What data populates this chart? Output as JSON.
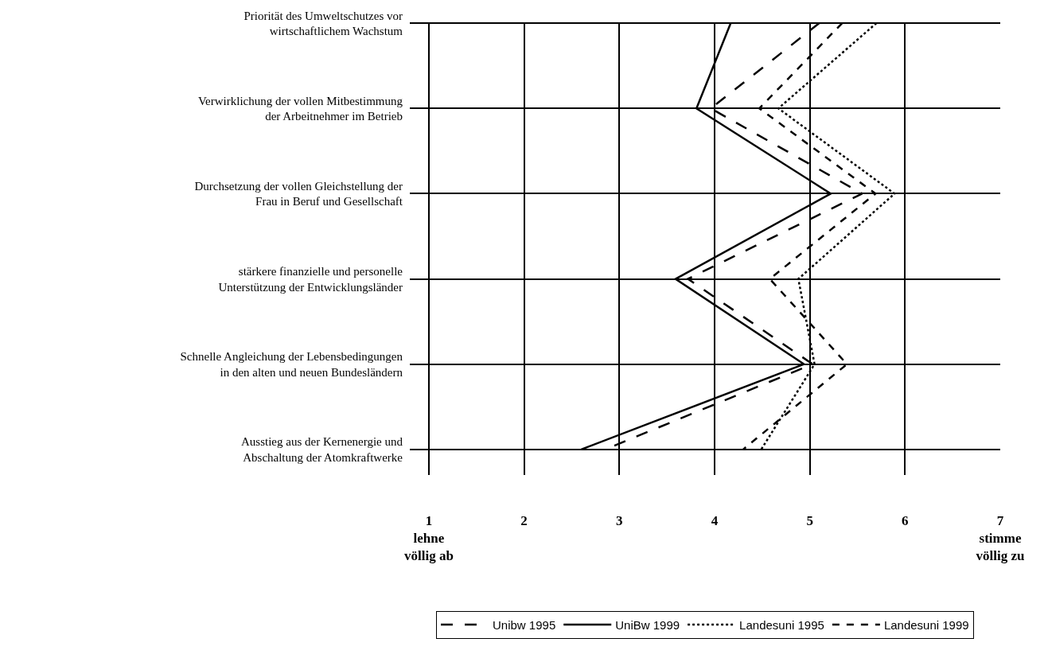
{
  "chart_data": {
    "type": "line",
    "orientation": "horizontal",
    "categories": [
      "Priorität des Umweltschutzes vor wirtschaftlichem Wachstum",
      "Verwirklichung der vollen Mitbestimmung der Arbeitnehmer im Betrieb",
      "Durchsetzung der vollen Gleichstellung der Frau in Beruf und Gesellschaft",
      "stärkere finanzielle und personelle Unterstützung der Entwicklungsländer",
      "Schnelle Angleichung der Lebensbedingungen in den alten und neuen Bundesländern",
      "Ausstieg aus der Kernenergie und Abschaltung der Atomkraftwerke"
    ],
    "series": [
      {
        "name": "Unibw 1995",
        "color": "#000000",
        "line_style": "dashed",
        "values": [
          5.1,
          3.96,
          5.55,
          3.72,
          5.03,
          2.85
        ]
      },
      {
        "name": "UniBw 1999",
        "color": "#000000",
        "line_style": "solid",
        "values": [
          4.17,
          3.81,
          5.22,
          3.59,
          4.94,
          2.6
        ]
      },
      {
        "name": "Landesuni 1995",
        "color": "#000000",
        "line_style": "dotted",
        "values": [
          5.7,
          4.67,
          5.89,
          4.88,
          5.05,
          4.49
        ]
      },
      {
        "name": "Landesuni 1999",
        "color": "#000000",
        "line_style": "dashed",
        "values": [
          5.34,
          4.47,
          5.69,
          4.58,
          5.39,
          4.3
        ]
      }
    ],
    "xlim": [
      0.8,
      7
    ],
    "xticks": [
      {
        "value": 1,
        "label": "1\nlehne\nvöllig ab"
      },
      2,
      3,
      4,
      5,
      6,
      {
        "value": 7,
        "label": "7\nstimme\nvöllig zu"
      }
    ],
    "grid": true,
    "legend": "bottom",
    "marker": "none"
  }
}
